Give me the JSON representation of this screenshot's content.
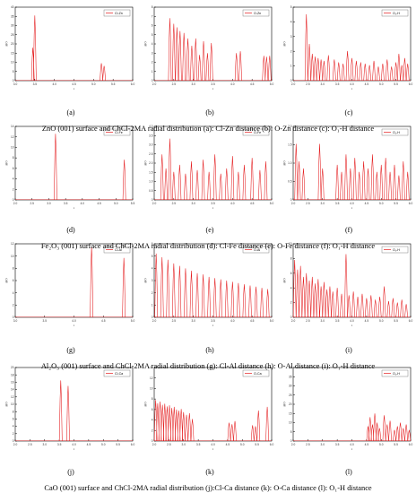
{
  "captions": [
    "ZnO (001) surface and ChCl-2MA radial distribution (a): Cl-Zn distance (b): O-Zn distance (c): O₁-H distance",
    "Fe₂O₃ (001) surface and ChCl-2MA radial distribution (d): Cl-Fe distance (e): O-Fe distance (f): O₁-H distance",
    "Al₂O₃ (001) surface and ChCl-2MA radial distribution (g): Cl-Al distance (h): O-Al distance (i): O₁-H distance",
    "CaO (001) surface and ChCl-2MA radial distribution (j):Cl-Ca distance (k): O-Ca distance (l): O₁-H distance"
  ],
  "colors": {
    "series": "#e41a1c",
    "axis": "#000000"
  },
  "chart_data": [
    {
      "id": "a",
      "panel_label": "(a)",
      "type": "line",
      "legend": "Cl-Zn",
      "legend_position": "top-right",
      "ylabel": "g(r)",
      "xlabel": "r",
      "xlim": [
        3.0,
        6.0
      ],
      "ylim": [
        0,
        40
      ],
      "xticks": [
        "3.0",
        "3.5",
        "4.0",
        "4.5",
        "5.0",
        "5.5",
        "6.0"
      ],
      "yticks": [
        "0",
        "5",
        "10",
        "15",
        "20",
        "25",
        "30",
        "35",
        "40"
      ],
      "peaks": [
        [
          3.45,
          18
        ],
        [
          3.5,
          35.5
        ],
        [
          5.2,
          9.5
        ],
        [
          5.27,
          8
        ]
      ]
    },
    {
      "id": "b",
      "panel_label": "(b)",
      "type": "line",
      "legend": "O-Zn",
      "legend_position": "top-right",
      "ylabel": "g(r)",
      "xlabel": "r",
      "xlim": [
        2.0,
        5.0
      ],
      "ylim": [
        0,
        8
      ],
      "xticks": [
        "2.0",
        "2.5",
        "3.0",
        "3.5",
        "4.0",
        "4.5",
        "5.0"
      ],
      "yticks": [
        "0",
        "1",
        "2",
        "3",
        "4",
        "5",
        "6",
        "7",
        "8"
      ],
      "peaks": [
        [
          2.4,
          6.8
        ],
        [
          2.5,
          6.2
        ],
        [
          2.58,
          5.8
        ],
        [
          2.66,
          5.4
        ],
        [
          2.76,
          5.2
        ],
        [
          2.86,
          4.6
        ],
        [
          2.96,
          3.8
        ],
        [
          3.06,
          4.6
        ],
        [
          3.16,
          2.8
        ],
        [
          3.26,
          4.3
        ],
        [
          3.36,
          3.0
        ],
        [
          3.46,
          4.1
        ],
        [
          4.1,
          3.0
        ],
        [
          4.2,
          3.2
        ],
        [
          4.8,
          2.7
        ],
        [
          4.87,
          2.6
        ],
        [
          4.95,
          2.7
        ]
      ]
    },
    {
      "id": "c",
      "panel_label": "(c)",
      "type": "line",
      "legend": "O₁-H",
      "legend_position": "top-right",
      "ylabel": "g(r)",
      "xlabel": "r",
      "xlim": [
        2.0,
        6.0
      ],
      "ylim": [
        0,
        5.2
      ],
      "xticks": [
        "2.0",
        "2.5",
        "3.0",
        "3.5",
        "4.0",
        "4.5",
        "5.0",
        "5.5",
        "6.0"
      ],
      "yticks": [
        "0",
        "1",
        "2",
        "3",
        "4",
        "5"
      ],
      "peaks": [
        [
          2.45,
          4.7
        ],
        [
          2.55,
          2.6
        ],
        [
          2.65,
          1.9
        ],
        [
          2.75,
          1.7
        ],
        [
          2.85,
          1.6
        ],
        [
          2.95,
          1.5
        ],
        [
          3.05,
          1.4
        ],
        [
          3.2,
          1.8
        ],
        [
          3.4,
          1.5
        ],
        [
          3.55,
          1.3
        ],
        [
          3.7,
          1.2
        ],
        [
          3.85,
          2.1
        ],
        [
          4.0,
          1.6
        ],
        [
          4.15,
          1.4
        ],
        [
          4.3,
          1.3
        ],
        [
          4.45,
          1.2
        ],
        [
          4.6,
          1.1
        ],
        [
          4.75,
          1.4
        ],
        [
          4.9,
          1.0
        ],
        [
          5.05,
          1.2
        ],
        [
          5.2,
          1.5
        ],
        [
          5.35,
          1.0
        ],
        [
          5.5,
          1.3
        ],
        [
          5.6,
          1.9
        ],
        [
          5.7,
          1.1
        ],
        [
          5.8,
          1.6
        ],
        [
          5.9,
          1.2
        ]
      ]
    },
    {
      "id": "d",
      "panel_label": "(d)",
      "type": "line",
      "legend": "Cl-Fe",
      "legend_position": "top-right",
      "ylabel": "g(r)",
      "xlabel": "r",
      "xlim": [
        2.0,
        5.5
      ],
      "ylim": [
        0,
        15
      ],
      "xticks": [
        "2.0",
        "2.5",
        "3.0",
        "3.5",
        "4.0",
        "4.5",
        "5.0",
        "5.5"
      ],
      "yticks": [
        "0",
        "2",
        "4",
        "6",
        "8",
        "10",
        "12",
        "14"
      ],
      "peaks": [
        [
          3.2,
          13.5
        ],
        [
          5.25,
          8.2
        ]
      ]
    },
    {
      "id": "e",
      "panel_label": "(e)",
      "type": "line",
      "legend": "O-Fe",
      "legend_position": "top-right",
      "ylabel": "g(r)",
      "xlabel": "r",
      "xlim": [
        2.0,
        5.0
      ],
      "ylim": [
        0,
        4.2
      ],
      "xticks": [
        "2.0",
        "2.5",
        "3.0",
        "3.5",
        "4.0",
        "4.5",
        "5.0"
      ],
      "yticks": [
        "0",
        "0.5",
        "1.0",
        "1.5",
        "2.0",
        "2.5",
        "3.0",
        "3.5",
        "4.0"
      ],
      "peaks": [
        [
          2.2,
          2.6
        ],
        [
          2.3,
          1.8
        ],
        [
          2.4,
          3.5
        ],
        [
          2.5,
          1.6
        ],
        [
          2.65,
          2.0
        ],
        [
          2.8,
          1.5
        ],
        [
          2.95,
          2.2
        ],
        [
          3.1,
          1.7
        ],
        [
          3.25,
          2.3
        ],
        [
          3.4,
          1.6
        ],
        [
          3.55,
          2.6
        ],
        [
          3.7,
          1.5
        ],
        [
          3.85,
          1.8
        ],
        [
          4.0,
          2.5
        ],
        [
          4.15,
          1.6
        ],
        [
          4.3,
          2.0
        ],
        [
          4.5,
          2.4
        ],
        [
          4.7,
          1.7
        ],
        [
          4.85,
          2.2
        ]
      ]
    },
    {
      "id": "f",
      "panel_label": "(f)",
      "type": "line",
      "legend": "O₁-H",
      "legend_position": "top-right",
      "ylabel": "g(r)",
      "xlabel": "r",
      "xlim": [
        2.0,
        6.0
      ],
      "ylim": [
        0,
        2.1
      ],
      "xticks": [
        "2.0",
        "2.5",
        "3.0",
        "3.5",
        "4.0",
        "4.5",
        "5.0",
        "5.5",
        "6.0"
      ],
      "yticks": [
        "0",
        "0.5",
        "1.0",
        "1.5",
        "2.0"
      ],
      "peaks": [
        [
          2.1,
          1.6
        ],
        [
          2.2,
          1.1
        ],
        [
          2.35,
          0.9
        ],
        [
          2.9,
          1.6
        ],
        [
          3.0,
          0.9
        ],
        [
          3.5,
          1.0
        ],
        [
          3.65,
          0.8
        ],
        [
          3.8,
          1.3
        ],
        [
          3.95,
          0.9
        ],
        [
          4.1,
          1.2
        ],
        [
          4.25,
          0.8
        ],
        [
          4.4,
          1.1
        ],
        [
          4.55,
          0.9
        ],
        [
          4.7,
          1.3
        ],
        [
          4.85,
          0.8
        ],
        [
          5.0,
          1.0
        ],
        [
          5.15,
          1.2
        ],
        [
          5.3,
          0.8
        ],
        [
          5.45,
          1.0
        ],
        [
          5.6,
          0.7
        ],
        [
          5.75,
          1.1
        ],
        [
          5.9,
          0.8
        ]
      ]
    },
    {
      "id": "g",
      "panel_label": "(g)",
      "type": "line",
      "legend": "Cl-Al",
      "legend_position": "top-right",
      "ylabel": "g(r)",
      "xlabel": "r",
      "xlim": [
        3.0,
        5.0
      ],
      "ylim": [
        0,
        13
      ],
      "xticks": [
        "3.0",
        "3.5",
        "4.0",
        "4.5",
        "5.0"
      ],
      "yticks": [
        "0",
        "2",
        "4",
        "6",
        "8",
        "10",
        "12"
      ],
      "peaks": [
        [
          4.3,
          12.5
        ],
        [
          4.85,
          10.5
        ]
      ]
    },
    {
      "id": "h",
      "panel_label": "(h)",
      "type": "line",
      "legend": "O-Al",
      "legend_position": "top-right",
      "ylabel": "g(r)",
      "xlabel": "r",
      "xlim": [
        2.0,
        5.0
      ],
      "ylim": [
        0,
        6
      ],
      "xticks": [
        "2.0",
        "2.5",
        "3.0",
        "3.5",
        "4.0",
        "4.5",
        "5.0"
      ],
      "yticks": [
        "0",
        "1",
        "2",
        "3",
        "4",
        "5",
        "6"
      ],
      "peaks": [
        [
          2.05,
          5.2
        ],
        [
          2.2,
          4.9
        ],
        [
          2.35,
          4.7
        ],
        [
          2.5,
          4.4
        ],
        [
          2.65,
          4.2
        ],
        [
          2.8,
          4.0
        ],
        [
          2.95,
          3.8
        ],
        [
          3.1,
          3.6
        ],
        [
          3.25,
          3.5
        ],
        [
          3.4,
          3.3
        ],
        [
          3.55,
          3.2
        ],
        [
          3.7,
          3.1
        ],
        [
          3.85,
          3.0
        ],
        [
          4.0,
          2.9
        ],
        [
          4.15,
          2.8
        ],
        [
          4.3,
          2.7
        ],
        [
          4.45,
          2.6
        ],
        [
          4.6,
          2.5
        ],
        [
          4.75,
          2.4
        ],
        [
          4.9,
          2.3
        ]
      ]
    },
    {
      "id": "i",
      "panel_label": "(i)",
      "type": "line",
      "legend": "O₁-H",
      "legend_position": "top-right",
      "ylabel": "g(r)",
      "xlabel": "r",
      "xlim": [
        2.0,
        6.0
      ],
      "ylim": [
        0,
        10
      ],
      "xticks": [
        "2.0",
        "2.5",
        "3.0",
        "3.5",
        "4.0",
        "4.5",
        "5.0",
        "5.5",
        "6.0"
      ],
      "yticks": [
        "0",
        "2",
        "4",
        "6",
        "8",
        "10"
      ],
      "peaks": [
        [
          2.05,
          7.8
        ],
        [
          2.15,
          6.5
        ],
        [
          2.25,
          7.0
        ],
        [
          2.35,
          5.5
        ],
        [
          2.45,
          6.0
        ],
        [
          2.55,
          5.0
        ],
        [
          2.65,
          5.5
        ],
        [
          2.75,
          4.6
        ],
        [
          2.85,
          5.2
        ],
        [
          2.95,
          4.2
        ],
        [
          3.05,
          4.8
        ],
        [
          3.15,
          3.8
        ],
        [
          3.25,
          4.2
        ],
        [
          3.35,
          3.5
        ],
        [
          3.5,
          4.0
        ],
        [
          3.65,
          3.2
        ],
        [
          3.8,
          8.6
        ],
        [
          3.9,
          3.0
        ],
        [
          4.05,
          3.5
        ],
        [
          4.2,
          2.8
        ],
        [
          4.35,
          3.2
        ],
        [
          4.5,
          2.6
        ],
        [
          4.65,
          3.0
        ],
        [
          4.8,
          2.4
        ],
        [
          4.95,
          2.8
        ],
        [
          5.1,
          4.2
        ],
        [
          5.25,
          2.2
        ],
        [
          5.4,
          2.6
        ],
        [
          5.55,
          2.0
        ],
        [
          5.7,
          2.4
        ],
        [
          5.85,
          1.8
        ]
      ]
    },
    {
      "id": "j",
      "panel_label": "(j)",
      "type": "line",
      "legend": "Cl-Ca",
      "legend_position": "top-right",
      "ylabel": "g(r)",
      "xlabel": "r",
      "xlim": [
        2.0,
        6.0
      ],
      "ylim": [
        0,
        20
      ],
      "xticks": [
        "2.0",
        "2.5",
        "3.0",
        "3.5",
        "4.0",
        "4.5",
        "5.0",
        "5.5",
        "6.0"
      ],
      "yticks": [
        "0",
        "2",
        "4",
        "6",
        "8",
        "10",
        "12",
        "14",
        "16",
        "18",
        "20"
      ],
      "peaks": [
        [
          3.55,
          16.5
        ],
        [
          3.8,
          15.0
        ]
      ]
    },
    {
      "id": "k",
      "panel_label": "(k)",
      "type": "line",
      "legend": "O-Ca",
      "legend_position": "top-right",
      "ylabel": "g(r)",
      "xlabel": "r",
      "xlim": [
        2.0,
        6.0
      ],
      "ylim": [
        0,
        14
      ],
      "xticks": [
        "2.0",
        "2.5",
        "3.0",
        "3.5",
        "4.0",
        "4.5",
        "5.0",
        "5.5",
        "6.0"
      ],
      "yticks": [
        "0",
        "2",
        "4",
        "6",
        "8",
        "10",
        "12",
        "14"
      ],
      "peaks": [
        [
          2.05,
          7.8
        ],
        [
          2.12,
          7.2
        ],
        [
          2.2,
          7.5
        ],
        [
          2.28,
          6.9
        ],
        [
          2.36,
          7.1
        ],
        [
          2.44,
          6.6
        ],
        [
          2.52,
          6.8
        ],
        [
          2.6,
          6.3
        ],
        [
          2.68,
          6.5
        ],
        [
          2.76,
          6.0
        ],
        [
          2.84,
          5.8
        ],
        [
          2.92,
          6.1
        ],
        [
          3.0,
          5.5
        ],
        [
          3.1,
          5.0
        ],
        [
          3.2,
          5.3
        ],
        [
          3.3,
          4.2
        ],
        [
          4.55,
          3.5
        ],
        [
          4.65,
          3.2
        ],
        [
          4.75,
          3.8
        ],
        [
          5.35,
          3.0
        ],
        [
          5.45,
          2.8
        ],
        [
          5.55,
          5.8
        ],
        [
          5.85,
          6.5
        ]
      ]
    },
    {
      "id": "l",
      "panel_label": "(l)",
      "type": "line",
      "legend": "O₁-H",
      "legend_position": "top-right",
      "ylabel": "g(r)",
      "xlabel": "r",
      "xlim": [
        2.0,
        6.0
      ],
      "ylim": [
        0,
        40
      ],
      "xticks": [
        "2.0",
        "2.5",
        "3.0",
        "3.5",
        "4.0",
        "4.5",
        "5.0",
        "5.5",
        "6.0"
      ],
      "yticks": [
        "0",
        "5",
        "10",
        "15",
        "20",
        "25",
        "30",
        "35",
        "40"
      ],
      "peaks": [
        [
          4.55,
          8
        ],
        [
          4.62,
          13
        ],
        [
          4.7,
          9
        ],
        [
          4.78,
          15
        ],
        [
          4.86,
          10
        ],
        [
          4.94,
          7
        ],
        [
          5.1,
          14
        ],
        [
          5.2,
          9
        ],
        [
          5.3,
          11
        ],
        [
          5.45,
          6
        ],
        [
          5.55,
          8
        ],
        [
          5.65,
          10
        ],
        [
          5.75,
          7
        ],
        [
          5.85,
          9
        ],
        [
          5.95,
          6
        ]
      ]
    }
  ]
}
